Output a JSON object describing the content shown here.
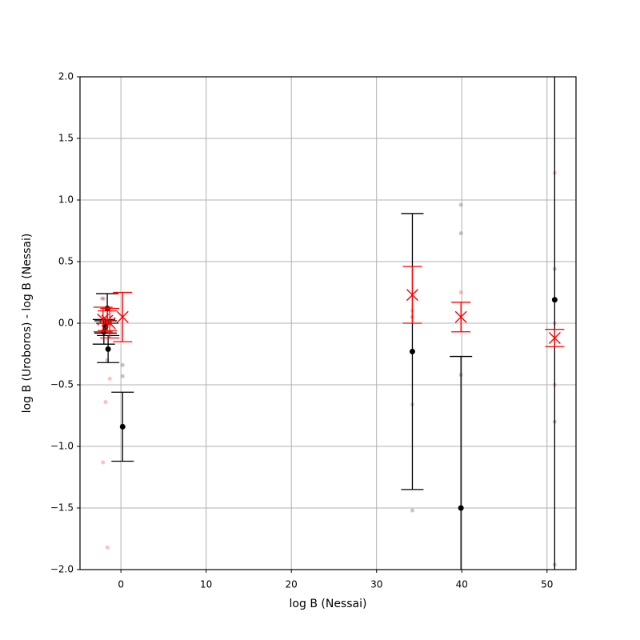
{
  "chart_data": {
    "type": "errorbar-scatter",
    "xlabel": "log B (Nessai)",
    "ylabel": "log B (Uroboros) - log B (Nessai)",
    "xlim": [
      -4.8,
      53.4
    ],
    "ylim": [
      -2,
      2
    ],
    "xticks": [
      0,
      10,
      20,
      30,
      40,
      50
    ],
    "yticks": [
      {
        "value": -2,
        "label": "−2.0"
      },
      {
        "value": -1.5,
        "label": "−1.5"
      },
      {
        "value": -1,
        "label": "−1.0"
      },
      {
        "value": -0.5,
        "label": "−0.5"
      },
      {
        "value": 0,
        "label": "0.0"
      },
      {
        "value": 0.5,
        "label": "0.5"
      },
      {
        "value": 1,
        "label": "1.0"
      },
      {
        "value": 1.5,
        "label": "1.5"
      },
      {
        "value": 2,
        "label": "2.0"
      }
    ],
    "grid": true,
    "series": [
      {
        "color": "#808080",
        "marker": "dot",
        "alpha": 0.45,
        "x": [
          -2.2,
          -1.6,
          0.2,
          0.2,
          34.2,
          34.2,
          39.9,
          39.9,
          39.9,
          50.9,
          50.9,
          50.9
        ],
        "values": [
          0.2,
          -0.3,
          -0.34,
          -0.43,
          -1.52,
          0.05,
          0.96,
          0.73,
          -0.42,
          0.44,
          -0.8,
          -1.96
        ]
      },
      {
        "color": "#ff0000",
        "marker": "dot",
        "alpha": 0.25,
        "x": [
          -2.0,
          -1.8,
          -2.1,
          -1.6,
          -1.3,
          34.2,
          34.2,
          39.9,
          50.9,
          50.9,
          50.9
        ],
        "values": [
          0.2,
          -0.64,
          -1.13,
          -1.82,
          -0.45,
          -0.66,
          0.1,
          0.25,
          1.22,
          -0.5,
          0.0
        ]
      },
      {
        "color": "#000000",
        "marker": "o",
        "alpha": 1,
        "x": [
          -2.0,
          -1.6,
          -1.5,
          -1.8,
          0.2,
          34.2,
          39.9,
          50.9
        ],
        "values": [
          -0.07,
          0.12,
          -0.21,
          -0.03,
          -0.84,
          -0.23,
          -1.5,
          0.19
        ],
        "errors": [
          0.1,
          0.12,
          0.11,
          0.05,
          0.28,
          1.12,
          1.23,
          2.5
        ]
      },
      {
        "color": "#ff0000",
        "marker": "x",
        "alpha": 1,
        "x": [
          -2.1,
          -1.6,
          -1.3,
          0.2,
          34.2,
          39.9,
          50.9
        ],
        "values": [
          0.03,
          0.02,
          0.0,
          0.05,
          0.23,
          0.05,
          -0.12
        ],
        "errors": [
          0.1,
          0.08,
          0.12,
          0.2,
          0.23,
          0.12,
          0.07
        ]
      }
    ]
  }
}
